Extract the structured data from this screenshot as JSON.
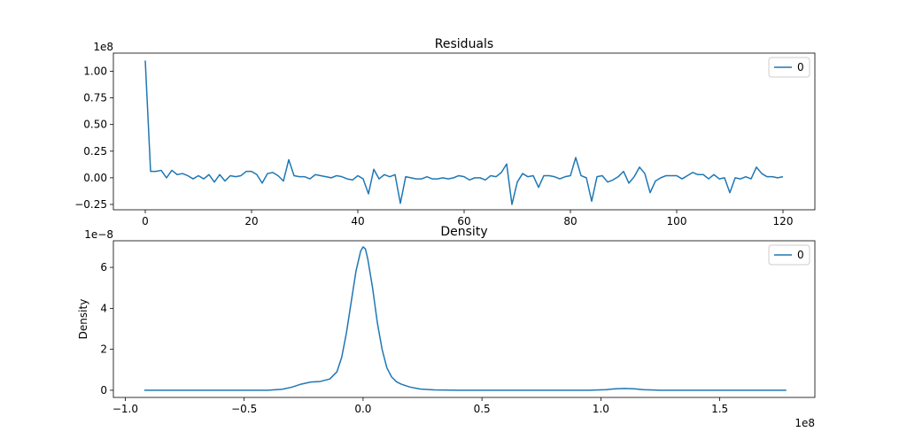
{
  "chart_data": [
    {
      "type": "line",
      "title": "Residuals",
      "xlabel": "",
      "ylabel": "",
      "y_offset_label": "1e8",
      "xlim": [
        -6,
        126
      ],
      "ylim": [
        -0.3,
        1.17
      ],
      "x_ticks": [
        0,
        20,
        40,
        60,
        80,
        100,
        120
      ],
      "x_tick_labels": [
        "0",
        "20",
        "40",
        "60",
        "80",
        "100",
        "120"
      ],
      "y_ticks": [
        -0.25,
        0,
        0.25,
        0.5,
        0.75,
        1.0
      ],
      "y_tick_labels": [
        "−0.25",
        "0.00",
        "0.25",
        "0.50",
        "0.75",
        "1.00"
      ],
      "grid": false,
      "legend_position": "top-right",
      "series": [
        {
          "name": "0",
          "x_start": 0,
          "x_step": 1,
          "values": [
            1.1,
            0.06,
            0.06,
            0.07,
            0.0,
            0.07,
            0.03,
            0.04,
            0.02,
            -0.01,
            0.02,
            -0.01,
            0.03,
            -0.04,
            0.03,
            -0.03,
            0.02,
            0.01,
            0.02,
            0.06,
            0.06,
            0.03,
            -0.05,
            0.04,
            0.05,
            0.02,
            -0.03,
            0.17,
            0.02,
            0.01,
            0.01,
            -0.01,
            0.03,
            0.02,
            0.01,
            0.0,
            0.02,
            0.01,
            -0.01,
            -0.02,
            0.02,
            -0.01,
            -0.15,
            0.08,
            -0.01,
            0.03,
            0.01,
            0.03,
            -0.24,
            0.01,
            0.0,
            -0.01,
            -0.01,
            0.01,
            -0.01,
            -0.01,
            0.0,
            -0.01,
            0.0,
            0.02,
            0.01,
            -0.02,
            0.0,
            0.0,
            -0.02,
            0.02,
            0.01,
            0.05,
            0.13,
            -0.25,
            -0.04,
            0.04,
            0.01,
            0.02,
            -0.09,
            0.02,
            0.02,
            0.01,
            -0.01,
            0.01,
            0.02,
            0.19,
            0.02,
            0.0,
            -0.22,
            0.01,
            0.02,
            -0.04,
            -0.02,
            0.01,
            0.06,
            -0.05,
            0.01,
            0.1,
            0.04,
            -0.14,
            -0.03,
            0.0,
            0.02,
            0.02,
            0.02,
            -0.01,
            0.02,
            0.05,
            0.03,
            0.03,
            -0.01,
            0.03,
            -0.01,
            0.0,
            -0.14,
            0.0,
            -0.01,
            0.01,
            -0.01,
            0.1,
            0.04,
            0.01,
            0.01,
            0.0,
            0.01
          ]
        }
      ]
    },
    {
      "type": "line",
      "title": "Density",
      "xlabel": "",
      "ylabel": "Density",
      "x_offset_label": "1e8",
      "y_offset_label": "1e−8",
      "xlim": [
        -1.05,
        1.9
      ],
      "ylim": [
        -0.35,
        7.3
      ],
      "x_ticks": [
        -1.0,
        -0.5,
        0.0,
        0.5,
        1.0,
        1.5
      ],
      "x_tick_labels": [
        "−1.0",
        "−0.5",
        "0.0",
        "0.5",
        "1.0",
        "1.5"
      ],
      "y_ticks": [
        0,
        2,
        4,
        6
      ],
      "y_tick_labels": [
        "0",
        "2",
        "4",
        "6"
      ],
      "grid": false,
      "legend_position": "top-right",
      "series": [
        {
          "name": "0",
          "x": [
            -0.92,
            -0.6,
            -0.4,
            -0.34,
            -0.3,
            -0.26,
            -0.22,
            -0.18,
            -0.14,
            -0.11,
            -0.09,
            -0.07,
            -0.05,
            -0.03,
            -0.01,
            0.0,
            0.01,
            0.02,
            0.04,
            0.06,
            0.08,
            0.1,
            0.12,
            0.14,
            0.16,
            0.18,
            0.2,
            0.24,
            0.3,
            0.4,
            0.6,
            0.8,
            0.95,
            1.02,
            1.06,
            1.1,
            1.14,
            1.18,
            1.25,
            1.4,
            1.6,
            1.78
          ],
          "values": [
            0.0,
            0.0,
            0.0,
            0.05,
            0.15,
            0.3,
            0.4,
            0.43,
            0.55,
            0.9,
            1.6,
            2.8,
            4.3,
            5.8,
            6.8,
            7.0,
            6.9,
            6.4,
            5.0,
            3.3,
            2.0,
            1.1,
            0.65,
            0.42,
            0.3,
            0.22,
            0.15,
            0.06,
            0.02,
            0.0,
            0.0,
            0.0,
            0.0,
            0.03,
            0.07,
            0.09,
            0.07,
            0.03,
            0.0,
            0.0,
            0.0,
            0.0
          ]
        }
      ]
    }
  ]
}
